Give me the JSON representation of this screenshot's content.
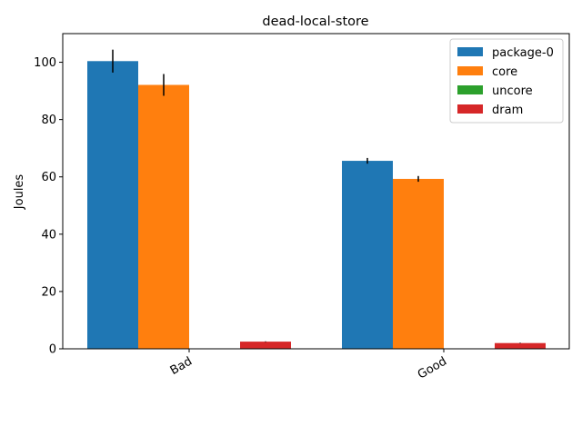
{
  "chart_data": {
    "type": "bar",
    "title": "dead-local-store",
    "ylabel": "Joules",
    "xlabel": "",
    "categories": [
      "Bad",
      "Good"
    ],
    "ylim": [
      0,
      110
    ],
    "yticks": [
      0,
      20,
      40,
      60,
      80,
      100
    ],
    "grid": false,
    "legend_position": "top-right",
    "series": [
      {
        "name": "package-0",
        "color": "#1f77b4",
        "values": [
          100.4,
          65.6
        ],
        "errors": [
          4.0,
          1.0
        ]
      },
      {
        "name": "core",
        "color": "#ff7f0e",
        "values": [
          92.1,
          59.3
        ],
        "errors": [
          3.8,
          1.0
        ]
      },
      {
        "name": "uncore",
        "color": "#2ca02c",
        "values": [
          0,
          0
        ],
        "errors": [
          0,
          0
        ]
      },
      {
        "name": "dram",
        "color": "#d62728",
        "values": [
          2.5,
          2.0
        ],
        "errors": [
          0.1,
          0.1
        ]
      }
    ]
  }
}
